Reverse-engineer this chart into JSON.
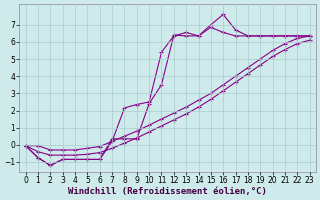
{
  "xlabel": "Windchill (Refroidissement éolien,°C)",
  "background_color": "#ceeaea",
  "grid_color": "#aacccc",
  "line_color": "#880088",
  "marker": "+",
  "markersize": 3,
  "linewidth": 0.8,
  "xlim": [
    -0.5,
    23.5
  ],
  "ylim": [
    -1.6,
    8.2
  ],
  "xticks": [
    0,
    1,
    2,
    3,
    4,
    5,
    6,
    7,
    8,
    9,
    10,
    11,
    12,
    13,
    14,
    15,
    16,
    17,
    18,
    19,
    20,
    21,
    22,
    23
  ],
  "yticks": [
    -1,
    0,
    1,
    2,
    3,
    4,
    5,
    6,
    7
  ],
  "xlabel_fontsize": 6.5,
  "tick_fontsize": 5.5,
  "line1_x": [
    0,
    1,
    2,
    3,
    4,
    5,
    6,
    7,
    8,
    9,
    10,
    11,
    12,
    13,
    14,
    15,
    16,
    17,
    18,
    19,
    20,
    21,
    22,
    23
  ],
  "line1_y": [
    -0.05,
    -0.75,
    -1.2,
    -0.85,
    -0.85,
    -0.85,
    -0.85,
    0.35,
    0.35,
    0.35,
    2.4,
    3.5,
    6.4,
    6.35,
    6.35,
    7.0,
    7.6,
    6.7,
    6.35,
    6.35,
    6.35,
    6.35,
    6.35,
    6.35
  ],
  "line2_x": [
    0,
    1,
    2,
    3,
    4,
    5,
    6,
    7,
    8,
    9,
    10,
    11,
    12,
    13,
    14,
    15,
    16,
    17,
    18,
    19,
    20,
    21,
    22,
    23
  ],
  "line2_y": [
    -0.05,
    -0.75,
    -1.2,
    -0.85,
    -0.85,
    -0.85,
    -0.85,
    0.2,
    2.15,
    2.35,
    2.5,
    5.4,
    6.35,
    6.55,
    6.35,
    6.85,
    6.55,
    6.35,
    6.35,
    6.35,
    6.35,
    6.35,
    6.35,
    6.35
  ],
  "line3_x": [
    0,
    1,
    2,
    3,
    4,
    5,
    6,
    7,
    8,
    9,
    10,
    11,
    12,
    13,
    14,
    15,
    16,
    17,
    18,
    19,
    20,
    21,
    22,
    23
  ],
  "line3_y": [
    -0.05,
    -0.05,
    -0.3,
    -0.3,
    -0.3,
    -0.2,
    -0.1,
    0.2,
    0.5,
    0.8,
    1.15,
    1.5,
    1.85,
    2.2,
    2.6,
    3.0,
    3.5,
    4.0,
    4.5,
    5.0,
    5.5,
    5.9,
    6.2,
    6.35
  ],
  "line4_x": [
    0,
    1,
    2,
    3,
    4,
    5,
    6,
    7,
    8,
    9,
    10,
    11,
    12,
    13,
    14,
    15,
    16,
    17,
    18,
    19,
    20,
    21,
    22,
    23
  ],
  "line4_y": [
    -0.05,
    -0.4,
    -0.6,
    -0.6,
    -0.6,
    -0.55,
    -0.45,
    -0.2,
    0.1,
    0.4,
    0.75,
    1.1,
    1.45,
    1.8,
    2.2,
    2.65,
    3.15,
    3.65,
    4.15,
    4.65,
    5.15,
    5.55,
    5.9,
    6.1
  ]
}
